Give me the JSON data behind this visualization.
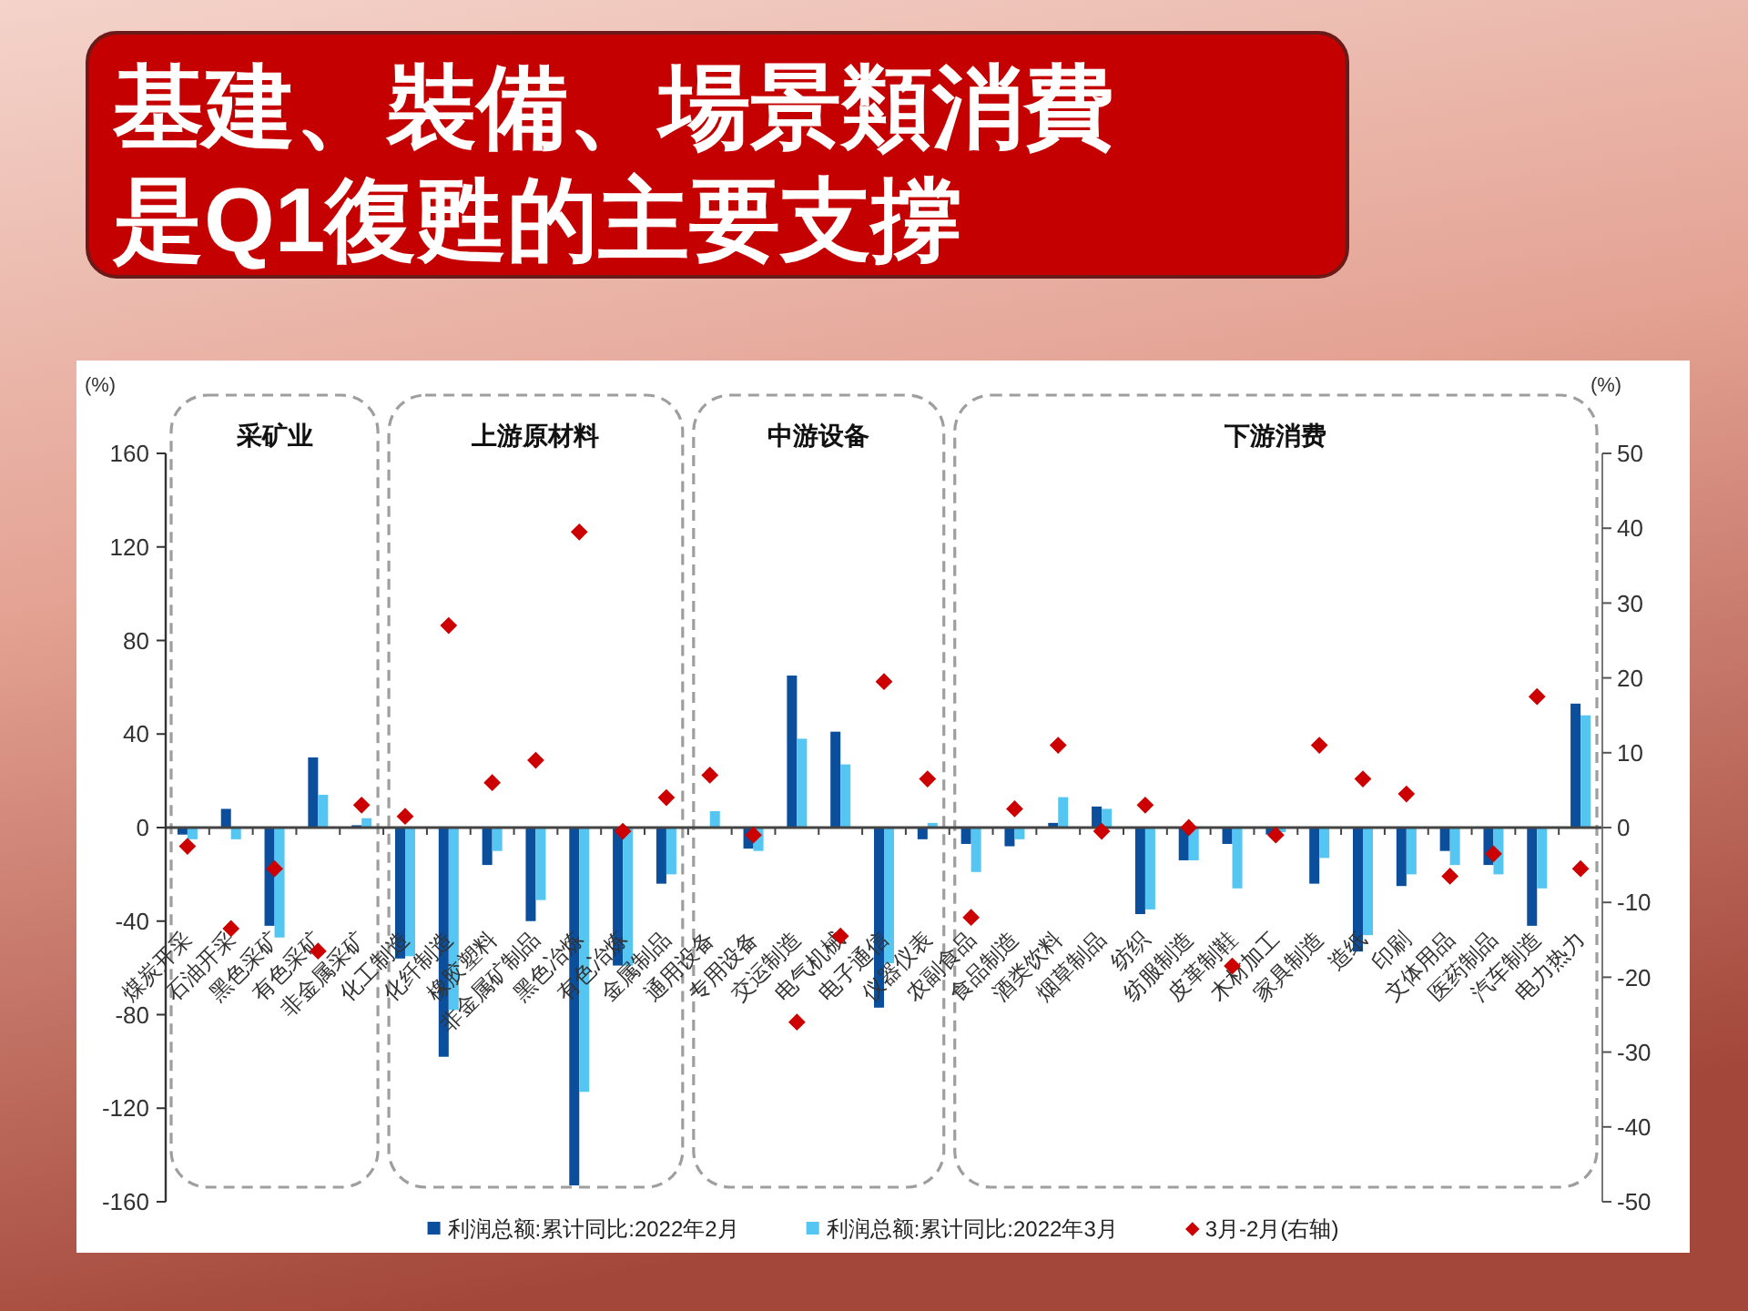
{
  "chart_data": {
    "type": "bar",
    "title": "基建、裝備、場景類消費是Q1復甦的主要支撐",
    "categories": [
      "煤炭开采",
      "石油开采",
      "黑色采矿",
      "有色采矿",
      "非金属采矿",
      "化工制造",
      "化纤制造",
      "橡胶塑料",
      "非金属矿制品",
      "黑色冶炼",
      "有色冶炼",
      "金属制品",
      "通用设备",
      "专用设备",
      "交运制造",
      "电气机械",
      "电子通信",
      "仪器仪表",
      "农副食品",
      "食品制造",
      "酒类饮料",
      "烟草制品",
      "纺织",
      "纺服制造",
      "皮革制鞋",
      "木材加工",
      "家具制造",
      "造纸",
      "印刷",
      "文体用品",
      "医药制品",
      "汽车制造",
      "电力热力"
    ],
    "series": [
      {
        "name": "利润总额:累计同比:2022年2月",
        "color": "#0b4f9c",
        "values": [
          -3,
          8,
          -42,
          30,
          1,
          -56,
          -98,
          -16,
          -40,
          -153,
          -59,
          -24,
          0,
          -9,
          65,
          41,
          -77,
          -5,
          -7,
          -8,
          2,
          9,
          -37,
          -14,
          -7,
          -3,
          -24,
          -53,
          -25,
          -10,
          -16,
          -42,
          53
        ]
      },
      {
        "name": "利润总额:累计同比:2022年3月",
        "color": "#55c5f2",
        "values": [
          -5,
          -5,
          -47,
          14,
          4,
          -55,
          -78,
          -10,
          -31,
          -113,
          -59,
          -20,
          7,
          -10,
          38,
          27,
          -58,
          2,
          -19,
          -5,
          13,
          8,
          -35,
          -14,
          -26,
          -2,
          -13,
          -46,
          -20,
          -16,
          -20,
          -26,
          48
        ]
      },
      {
        "name": "3月-2月(右轴)",
        "color": "#cc0000",
        "type": "scatter",
        "axis": "y2",
        "values": [
          -2.5,
          -13.5,
          -5.5,
          -16.5,
          3,
          1.5,
          27,
          6,
          9,
          39.5,
          -0.5,
          4,
          7,
          -1,
          -26,
          -14.5,
          19.5,
          6.5,
          -12,
          2.5,
          11,
          -0.5,
          3,
          0,
          -18.5,
          -1,
          11,
          6.5,
          4.5,
          -6.5,
          -3.5,
          17.5,
          -5.5
        ]
      }
    ],
    "ylabel": "(%)",
    "y2label": "(%)",
    "ylim": [
      -160,
      160
    ],
    "yticks": [
      -160,
      -120,
      -80,
      -40,
      0,
      40,
      80,
      120,
      160
    ],
    "y2lim": [
      -50,
      50
    ],
    "y2ticks": [
      -50,
      -40,
      -30,
      -20,
      -10,
      0,
      10,
      20,
      30,
      40,
      50
    ],
    "annotations": [
      "采矿业",
      "上游原材料",
      "中游设备",
      "下游消费"
    ],
    "marker": "diamond",
    "legend": "bottom"
  }
}
